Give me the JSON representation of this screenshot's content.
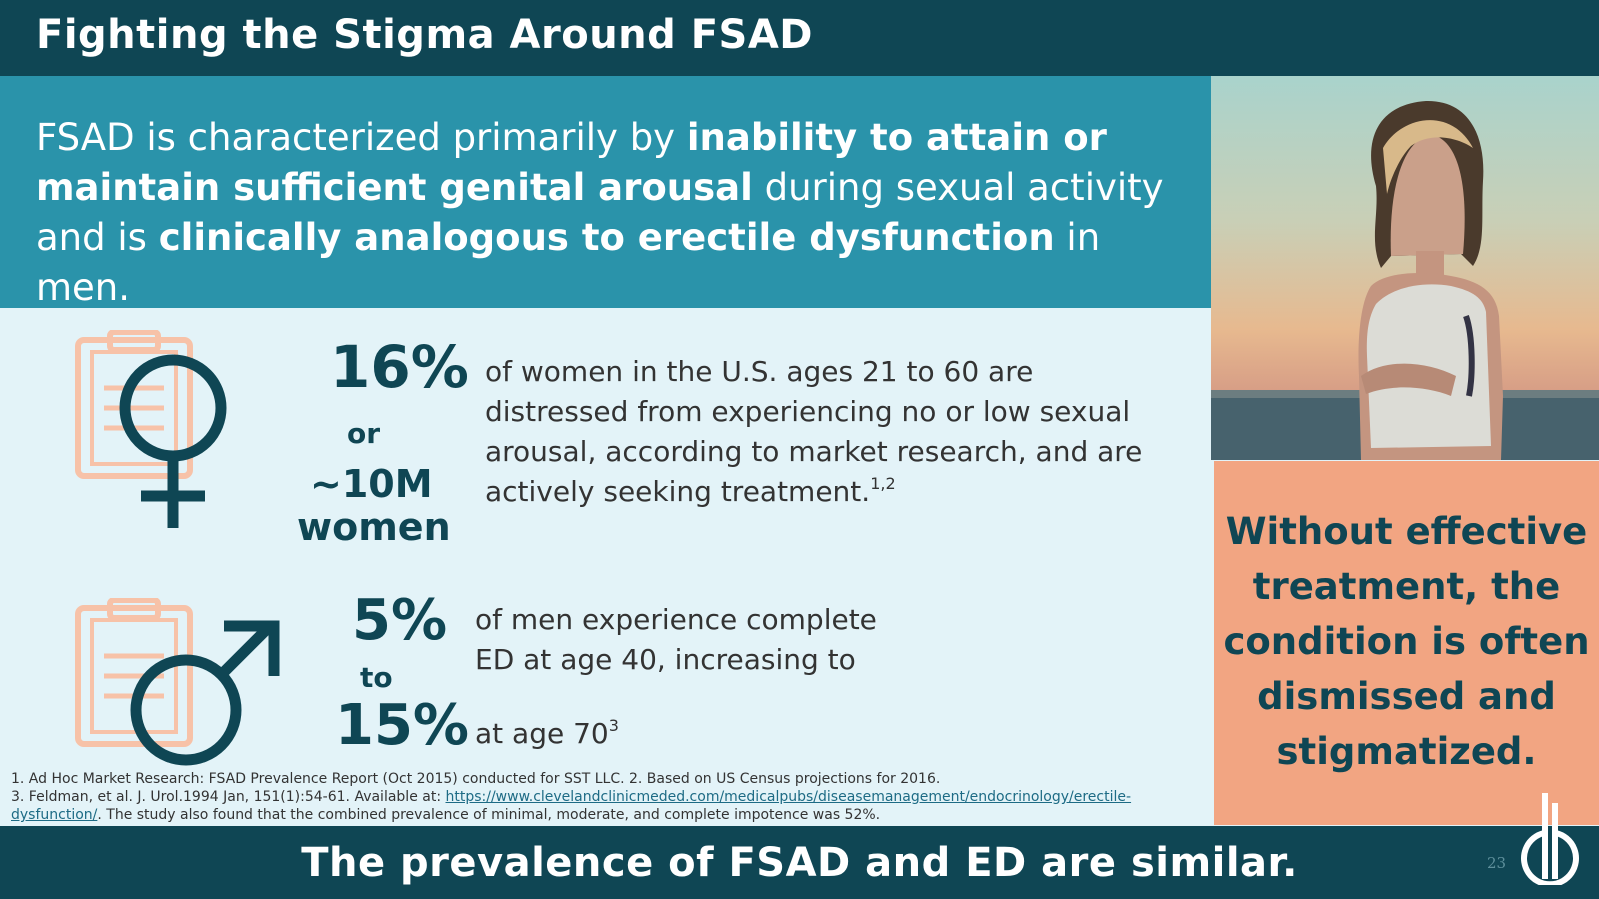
{
  "header": {
    "title": "Fighting the Stigma Around FSAD"
  },
  "intro": {
    "p1": "FSAD is characterized primarily by ",
    "b1": "inability to attain or maintain sufficient genital arousal",
    "p2": " during sexual activity and is ",
    "b2": "clinically analogous to erectile dysfunction",
    "p3": " in men."
  },
  "women_stat": {
    "percent": "16%",
    "or": "or",
    "count": "~10M",
    "unit": "women",
    "description": "of women in the U.S. ages 21 to 60 are distressed from experiencing no or low sexual arousal, according to market research, and are actively seeking treatment.",
    "ref": "1,2"
  },
  "men_stat": {
    "low": "5%",
    "to": "to",
    "high": "15%",
    "description_line1": "of men experience complete ED at age 40, increasing to",
    "description_line2": "at age 70",
    "ref": "3"
  },
  "callout": {
    "text": "Without effective treatment, the condition is often dismissed and stigmatized."
  },
  "footnotes": {
    "line1": "1. Ad Hoc Market Research: FSAD Prevalence Report (Oct 2015) conducted for SST LLC. 2. Based on US Census projections for 2016.",
    "line2_prefix": "3. Feldman, et al. J. Urol.1994 Jan, 151(1):54-61.  Available at: ",
    "link": "https://www.clevelandclinicmeded.com/medicalpubs/diseasemanagement/endocrinology/erectile-dysfunction/",
    "line2_suffix": ". The study also found that the combined prevalence of minimal, moderate, and complete impotence was 52%."
  },
  "footer": {
    "text": "The prevalence of FSAD and ED are similar.",
    "page_number": "23"
  },
  "colors": {
    "dark_teal": "#0f4654",
    "teal": "#2a93aa",
    "light_bg": "#e3f3f8",
    "salmon": "#f2a582",
    "clipboard": "#f7c2a8"
  },
  "icons": [
    "clipboard-icon",
    "female-symbol-icon",
    "male-symbol-icon",
    "company-logo-icon"
  ]
}
